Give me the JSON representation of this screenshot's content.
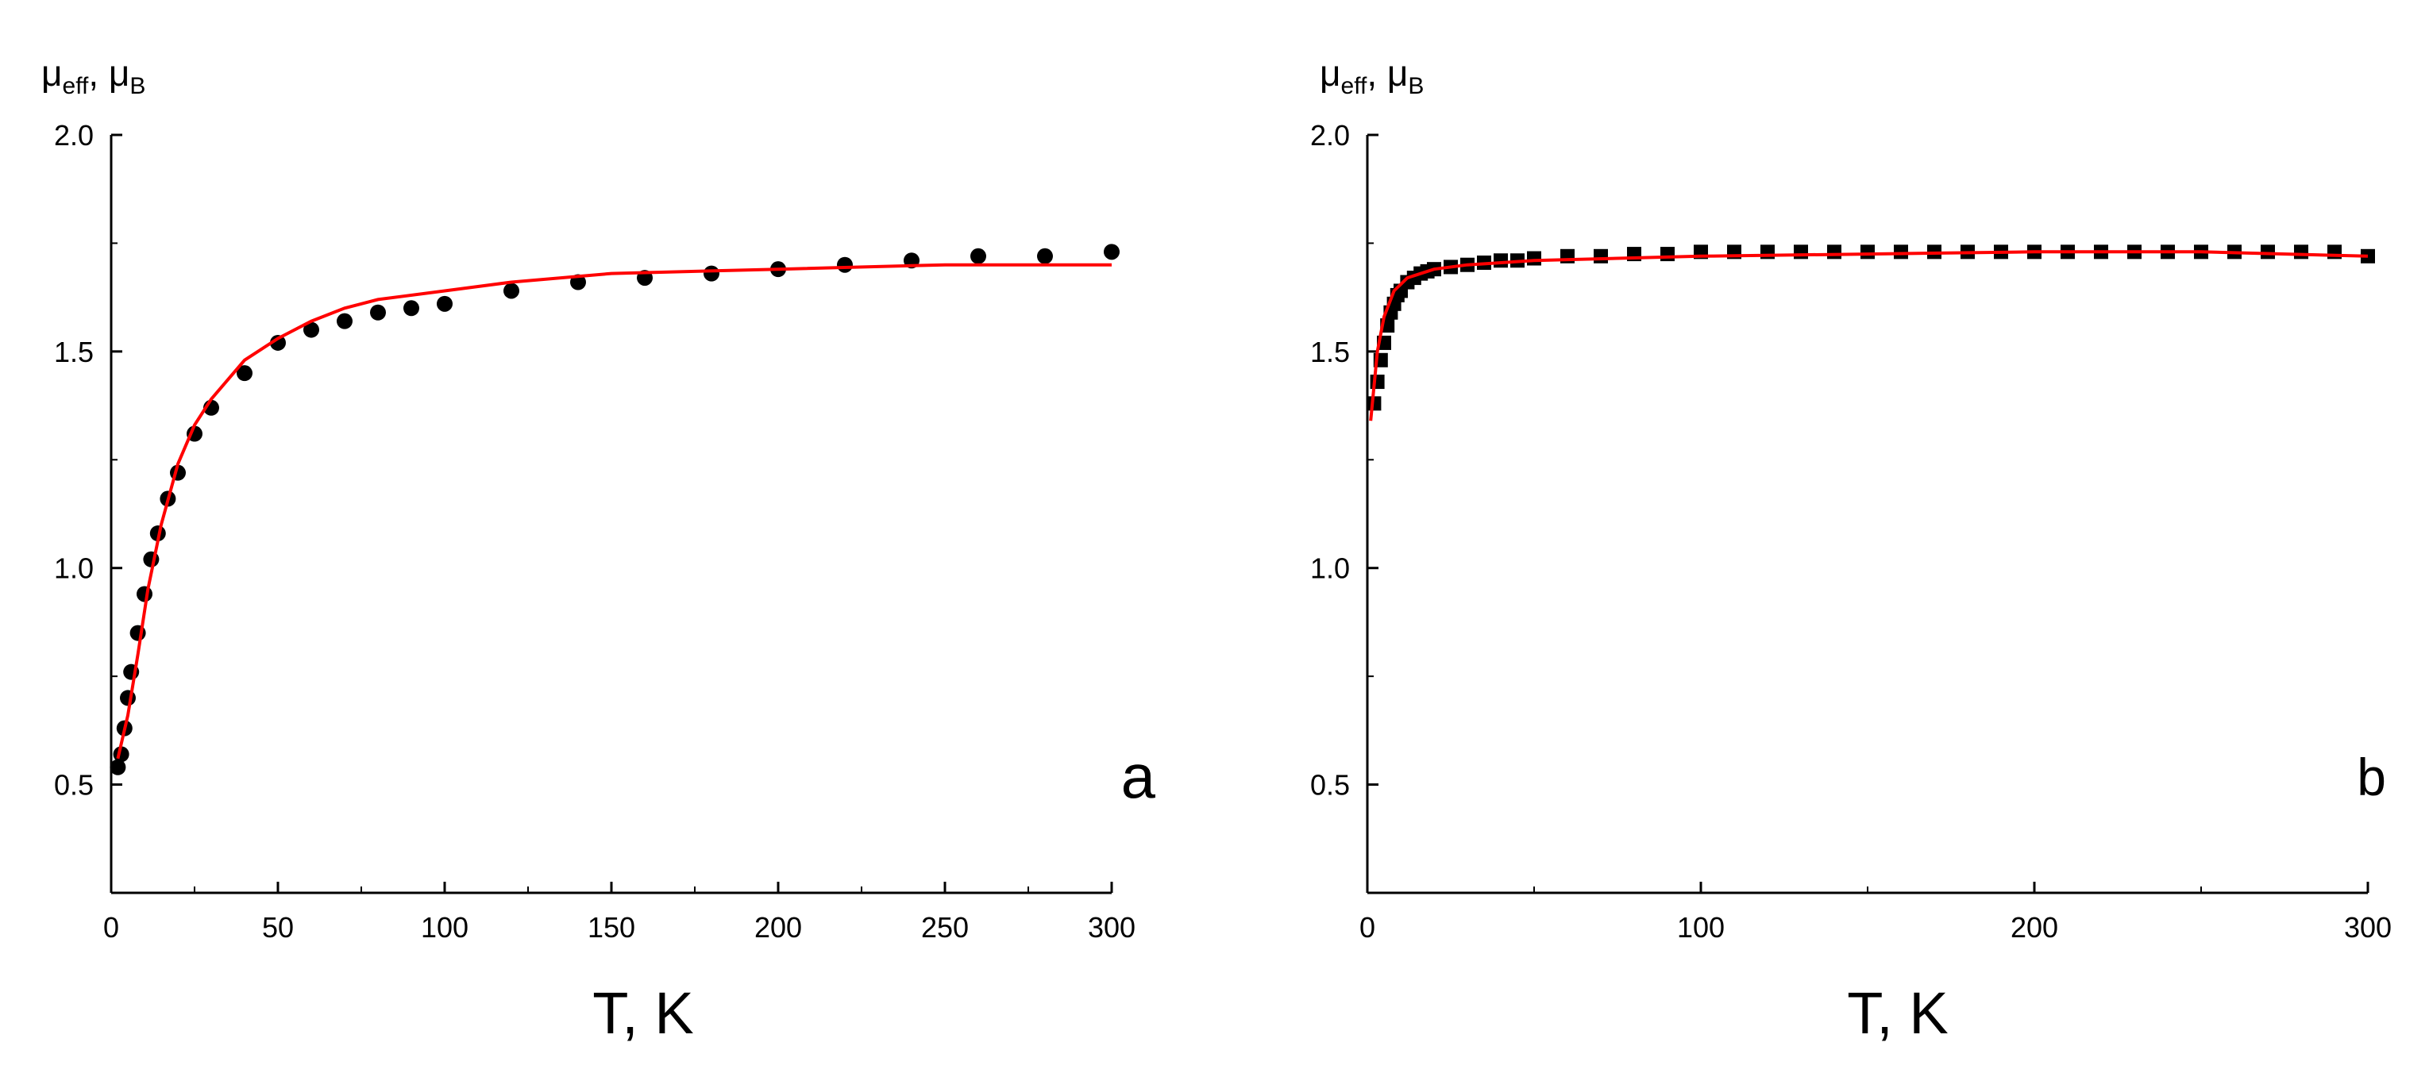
{
  "chart_data": [
    {
      "type": "scatter",
      "panel_label": "a",
      "ylabel_main": "μ",
      "ylabel_main_sub": "eff",
      "ylabel_sep": ",  μ",
      "ylabel_unit_sub": "B",
      "xlabel": "T, K",
      "xlim": [
        0,
        300
      ],
      "ylim": [
        0.25,
        2.0
      ],
      "x_ticks": [
        "0",
        "50",
        "100",
        "150",
        "200",
        "250",
        "300"
      ],
      "y_ticks": [
        "0.5",
        "1.0",
        "1.5",
        "2.0"
      ],
      "series": [
        {
          "marker": "circle",
          "color": "#000000",
          "points": [
            [
              2,
              0.54
            ],
            [
              3,
              0.57
            ],
            [
              4,
              0.63
            ],
            [
              5,
              0.7
            ],
            [
              6,
              0.76
            ],
            [
              8,
              0.85
            ],
            [
              10,
              0.94
            ],
            [
              12,
              1.02
            ],
            [
              14,
              1.08
            ],
            [
              17,
              1.16
            ],
            [
              20,
              1.22
            ],
            [
              25,
              1.31
            ],
            [
              30,
              1.37
            ],
            [
              40,
              1.45
            ],
            [
              50,
              1.52
            ],
            [
              60,
              1.55
            ],
            [
              70,
              1.57
            ],
            [
              80,
              1.59
            ],
            [
              90,
              1.6
            ],
            [
              100,
              1.61
            ],
            [
              120,
              1.64
            ],
            [
              140,
              1.66
            ],
            [
              160,
              1.67
            ],
            [
              180,
              1.68
            ],
            [
              200,
              1.69
            ],
            [
              220,
              1.7
            ],
            [
              240,
              1.71
            ],
            [
              260,
              1.72
            ],
            [
              280,
              1.72
            ],
            [
              300,
              1.73
            ]
          ]
        },
        {
          "marker": "line",
          "color": "#ff0000",
          "points": [
            [
              2,
              0.56
            ],
            [
              5,
              0.66
            ],
            [
              8,
              0.8
            ],
            [
              11,
              0.95
            ],
            [
              15,
              1.1
            ],
            [
              20,
              1.24
            ],
            [
              25,
              1.33
            ],
            [
              30,
              1.39
            ],
            [
              40,
              1.48
            ],
            [
              50,
              1.53
            ],
            [
              60,
              1.57
            ],
            [
              70,
              1.6
            ],
            [
              80,
              1.62
            ],
            [
              100,
              1.64
            ],
            [
              120,
              1.66
            ],
            [
              150,
              1.68
            ],
            [
              200,
              1.69
            ],
            [
              250,
              1.7
            ],
            [
              300,
              1.7
            ]
          ]
        }
      ]
    },
    {
      "type": "scatter",
      "panel_label": "b",
      "ylabel_main": "μ",
      "ylabel_main_sub": "eff",
      "ylabel_sep": ",  μ",
      "ylabel_unit_sub": "B",
      "xlabel": "T, K",
      "xlim": [
        0,
        300
      ],
      "ylim": [
        0.25,
        2.0
      ],
      "x_ticks": [
        "0",
        "100",
        "200",
        "300"
      ],
      "y_ticks": [
        "0.5",
        "1.0",
        "1.5",
        "2.0"
      ],
      "series": [
        {
          "marker": "square",
          "color": "#000000",
          "points": [
            [
              2,
              1.38
            ],
            [
              3,
              1.43
            ],
            [
              4,
              1.48
            ],
            [
              5,
              1.52
            ],
            [
              6,
              1.56
            ],
            [
              7,
              1.59
            ],
            [
              8,
              1.61
            ],
            [
              9,
              1.63
            ],
            [
              10,
              1.64
            ],
            [
              12,
              1.66
            ],
            [
              14,
              1.67
            ],
            [
              16,
              1.68
            ],
            [
              18,
              1.685
            ],
            [
              20,
              1.69
            ],
            [
              25,
              1.695
            ],
            [
              30,
              1.7
            ],
            [
              35,
              1.705
            ],
            [
              40,
              1.71
            ],
            [
              45,
              1.71
            ],
            [
              50,
              1.715
            ],
            [
              60,
              1.72
            ],
            [
              70,
              1.72
            ],
            [
              80,
              1.725
            ],
            [
              90,
              1.725
            ],
            [
              100,
              1.73
            ],
            [
              110,
              1.73
            ],
            [
              120,
              1.73
            ],
            [
              130,
              1.73
            ],
            [
              140,
              1.73
            ],
            [
              150,
              1.73
            ],
            [
              160,
              1.73
            ],
            [
              170,
              1.73
            ],
            [
              180,
              1.73
            ],
            [
              190,
              1.73
            ],
            [
              200,
              1.73
            ],
            [
              210,
              1.73
            ],
            [
              220,
              1.73
            ],
            [
              230,
              1.73
            ],
            [
              240,
              1.73
            ],
            [
              250,
              1.73
            ],
            [
              260,
              1.73
            ],
            [
              270,
              1.73
            ],
            [
              280,
              1.73
            ],
            [
              290,
              1.73
            ],
            [
              300,
              1.72
            ]
          ]
        },
        {
          "marker": "line",
          "color": "#ff0000",
          "points": [
            [
              1,
              1.34
            ],
            [
              2,
              1.42
            ],
            [
              3,
              1.5
            ],
            [
              5,
              1.58
            ],
            [
              8,
              1.64
            ],
            [
              12,
              1.67
            ],
            [
              20,
              1.69
            ],
            [
              30,
              1.7
            ],
            [
              50,
              1.71
            ],
            [
              100,
              1.72
            ],
            [
              150,
              1.725
            ],
            [
              200,
              1.73
            ],
            [
              250,
              1.73
            ],
            [
              300,
              1.72
            ]
          ]
        }
      ]
    }
  ]
}
